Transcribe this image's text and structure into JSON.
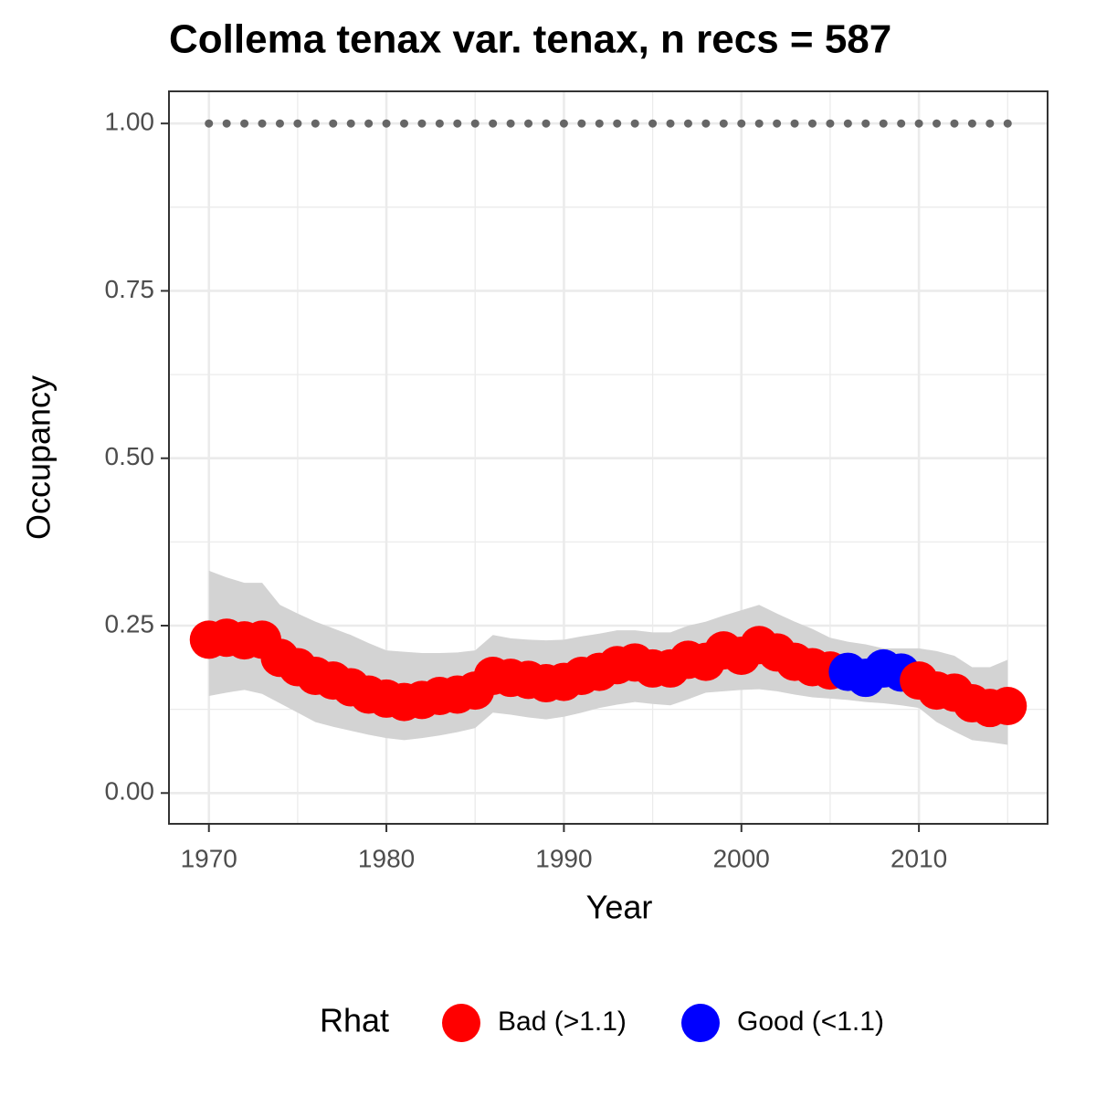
{
  "chart_data": {
    "type": "scatter",
    "title": "Collema tenax var. tenax, n recs = 587",
    "x_label": "Year",
    "y_label": "Occupancy",
    "x": [
      1970,
      1971,
      1972,
      1973,
      1974,
      1975,
      1976,
      1977,
      1978,
      1979,
      1980,
      1981,
      1982,
      1983,
      1984,
      1985,
      1986,
      1987,
      1988,
      1989,
      1990,
      1991,
      1992,
      1993,
      1994,
      1995,
      1996,
      1997,
      1998,
      1999,
      2000,
      2001,
      2002,
      2003,
      2004,
      2005,
      2006,
      2007,
      2008,
      2009,
      2010,
      2011,
      2012,
      2013,
      2014,
      2015
    ],
    "values": [
      0.229,
      0.232,
      0.228,
      0.229,
      0.202,
      0.188,
      0.175,
      0.168,
      0.158,
      0.147,
      0.141,
      0.136,
      0.139,
      0.145,
      0.147,
      0.153,
      0.175,
      0.172,
      0.169,
      0.164,
      0.166,
      0.175,
      0.181,
      0.191,
      0.195,
      0.186,
      0.186,
      0.199,
      0.196,
      0.213,
      0.205,
      0.221,
      0.21,
      0.196,
      0.188,
      0.183,
      0.181,
      0.172,
      0.186,
      0.18,
      0.168,
      0.153,
      0.15,
      0.134,
      0.127,
      0.13
    ],
    "groups": [
      0,
      0,
      0,
      0,
      0,
      0,
      0,
      0,
      0,
      0,
      0,
      0,
      0,
      0,
      0,
      0,
      0,
      0,
      0,
      0,
      0,
      0,
      0,
      0,
      0,
      0,
      0,
      0,
      0,
      0,
      0,
      0,
      0,
      0,
      0,
      0,
      1,
      1,
      1,
      1,
      0,
      0,
      0,
      0,
      0,
      0
    ],
    "ribbon_upper": [
      0.332,
      0.322,
      0.314,
      0.314,
      0.281,
      0.268,
      0.256,
      0.246,
      0.236,
      0.224,
      0.213,
      0.211,
      0.209,
      0.209,
      0.21,
      0.213,
      0.236,
      0.231,
      0.229,
      0.228,
      0.229,
      0.234,
      0.238,
      0.243,
      0.243,
      0.24,
      0.24,
      0.25,
      0.256,
      0.265,
      0.273,
      0.281,
      0.268,
      0.256,
      0.245,
      0.232,
      0.226,
      0.222,
      0.216,
      0.216,
      0.216,
      0.212,
      0.205,
      0.188,
      0.188,
      0.199
    ],
    "ribbon_lower": [
      0.145,
      0.15,
      0.154,
      0.148,
      0.134,
      0.12,
      0.106,
      0.099,
      0.093,
      0.087,
      0.082,
      0.079,
      0.082,
      0.086,
      0.091,
      0.097,
      0.12,
      0.117,
      0.113,
      0.11,
      0.114,
      0.12,
      0.127,
      0.132,
      0.136,
      0.133,
      0.131,
      0.14,
      0.15,
      0.152,
      0.154,
      0.155,
      0.152,
      0.147,
      0.143,
      0.141,
      0.139,
      0.136,
      0.134,
      0.131,
      0.127,
      0.106,
      0.092,
      0.079,
      0.076,
      0.072
    ],
    "ribbon_color": "#d3d3d3",
    "reference_line": 1,
    "reference_color": "#666666",
    "legend": {
      "title": "Rhat",
      "items": [
        {
          "name": "Bad (>1.1)",
          "color": "#ff0000"
        },
        {
          "name": "Good (<1.1)",
          "color": "#0000ff"
        }
      ]
    },
    "legend_position": "bottom",
    "xlim": [
      1967.75,
      2017.25
    ],
    "ylim": [
      -0.046,
      1.048
    ],
    "xticks": [
      1970,
      1980,
      1990,
      2000,
      2010
    ],
    "yticks": [
      {
        "value": 0,
        "label": "0.00"
      },
      {
        "value": 0.25,
        "label": "0.25"
      },
      {
        "value": 0.5,
        "label": "0.50"
      },
      {
        "value": 0.75,
        "label": "0.75"
      },
      {
        "value": 1,
        "label": "1.00"
      }
    ],
    "minor_xticks": [
      1975,
      1985,
      1995,
      2005,
      2015
    ],
    "minor_yticks": [
      0.125,
      0.375,
      0.625,
      0.875
    ],
    "grid": true
  }
}
